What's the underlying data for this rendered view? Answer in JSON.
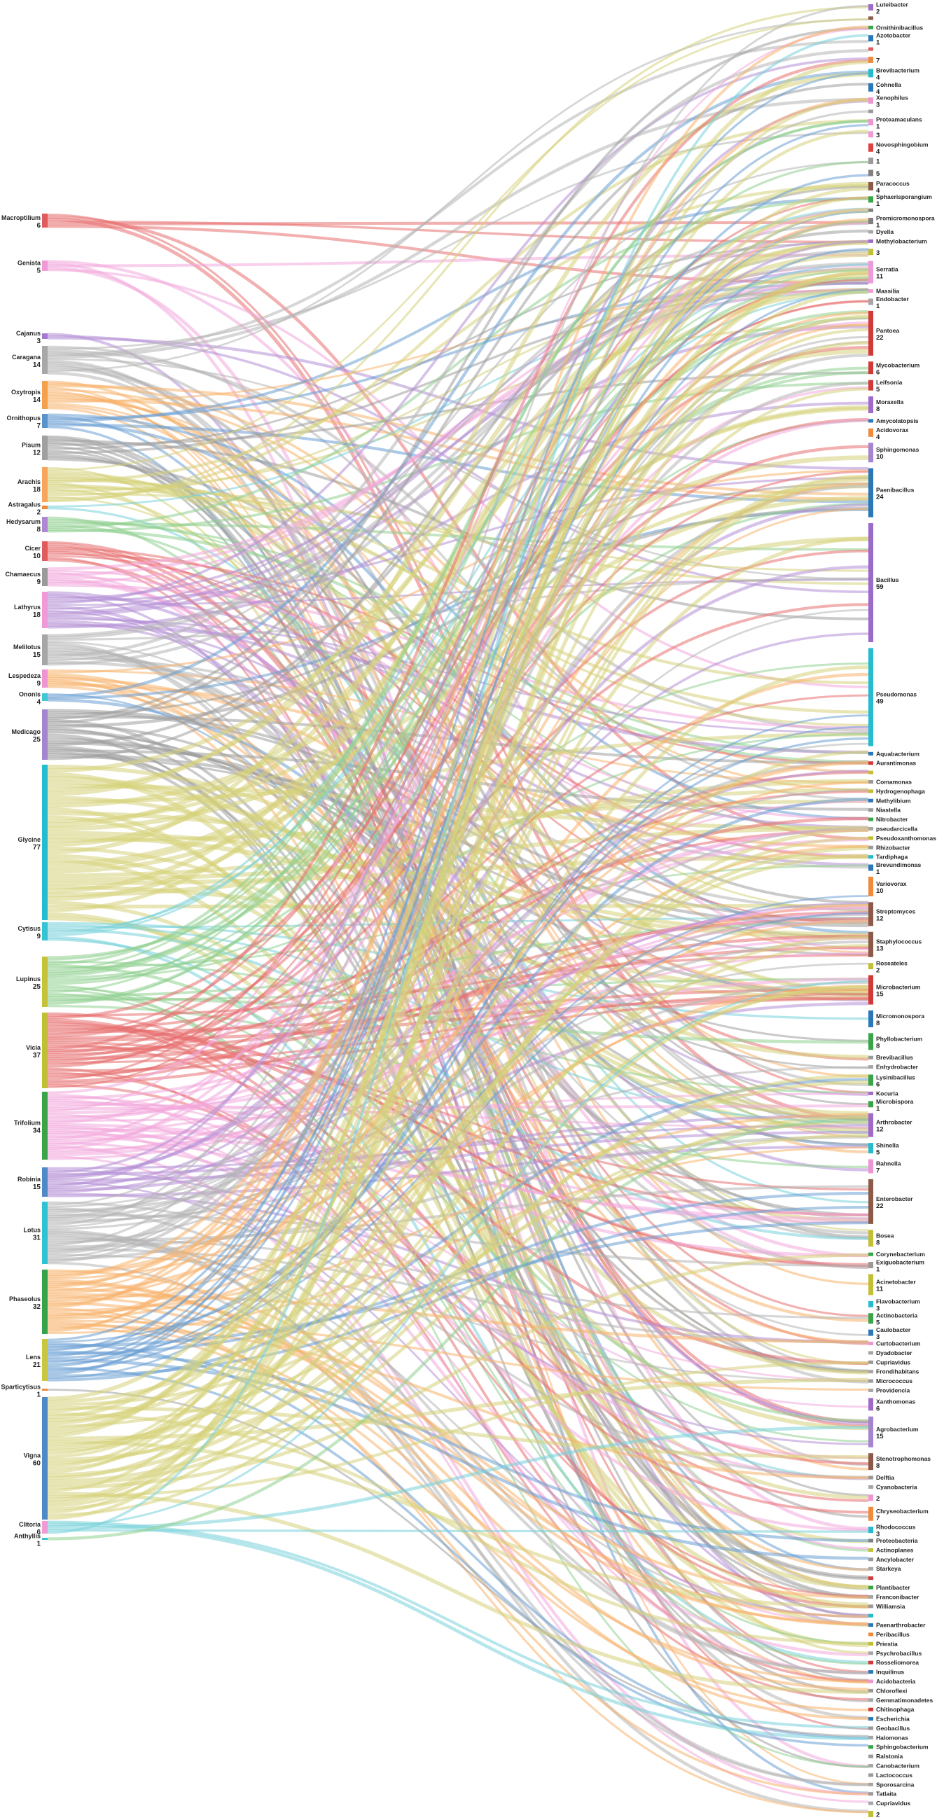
{
  "diagram": {
    "type": "sankey",
    "palette": [
      "#e76f6f",
      "#f3a7dc",
      "#b48fd6",
      "#b4b4b4",
      "#f7b26b",
      "#6a9fd4",
      "#9e9e9e",
      "#d6d27a",
      "#79d2db",
      "#8fcf8f"
    ],
    "left_nodes": [
      {
        "name": "Macroptilium",
        "value": "6",
        "color": "#e05b5b"
      },
      {
        "name": "Genista",
        "value": "5",
        "color": "#f09ad6"
      },
      {
        "name": "Cajanus",
        "value": "3",
        "color": "#a47acf"
      },
      {
        "name": "Caragana",
        "value": "14",
        "color": "#a8a8a8"
      },
      {
        "name": "Oxytropis",
        "value": "14",
        "color": "#f5a04a"
      },
      {
        "name": "Ornithopus",
        "value": "7",
        "color": "#5a92cc"
      },
      {
        "name": "Pisum",
        "value": "12",
        "color": "#a0a0a0"
      },
      {
        "name": "Arachis",
        "value": "18",
        "color": "#f7a65b"
      },
      {
        "name": "Astragalus",
        "value": "2",
        "color": "#f08a3c"
      },
      {
        "name": "Hedysarum",
        "value": "8",
        "color": "#b087d4"
      },
      {
        "name": "Cicer",
        "value": "10",
        "color": "#e05b5b"
      },
      {
        "name": "Chamaecus",
        "value": "9",
        "color": "#9a9a9a"
      },
      {
        "name": "Lathyrus",
        "value": "18",
        "color": "#ef9ad9"
      },
      {
        "name": "Melilotus",
        "value": "15",
        "color": "#a6a6a6"
      },
      {
        "name": "Lespedeza",
        "value": "9",
        "color": "#ee95d4"
      },
      {
        "name": "Ononis",
        "value": "4",
        "color": "#3fc7d6"
      },
      {
        "name": "Medicago",
        "value": "25",
        "color": "#a685d0"
      },
      {
        "name": "Glycine",
        "value": "77",
        "color": "#25bccf"
      },
      {
        "name": "Cytisus",
        "value": "9",
        "color": "#37c3d4"
      },
      {
        "name": "Lupinus",
        "value": "25",
        "color": "#c6c33a"
      },
      {
        "name": "Vicia",
        "value": "37",
        "color": "#c2bf35"
      },
      {
        "name": "Trifolium",
        "value": "34",
        "color": "#3aa548"
      },
      {
        "name": "Robinia",
        "value": "15",
        "color": "#4f8ac7"
      },
      {
        "name": "Lotus",
        "value": "31",
        "color": "#2fc2d3"
      },
      {
        "name": "Phaseolus",
        "value": "32",
        "color": "#36a34a"
      },
      {
        "name": "Lens",
        "value": "21",
        "color": "#c9c640"
      },
      {
        "name": "Sparticytisus",
        "value": "1",
        "color": "#f08a3c"
      },
      {
        "name": "Vigna",
        "value": "60",
        "color": "#4f8ac7"
      },
      {
        "name": "Clitoria",
        "value": "6",
        "color": "#f09ad6"
      },
      {
        "name": "Anthyllis",
        "value": "1",
        "color": "#37c3d4"
      }
    ],
    "right_nodes": [
      {
        "name": "Luteibacter",
        "value": "2",
        "color": "#a06bc8"
      },
      {
        "name": "",
        "value": "",
        "color": "#8c5a48"
      },
      {
        "name": "Ornithinibacillus",
        "value": "",
        "color": "#3aa548"
      },
      {
        "name": "Azotobacter",
        "value": "1",
        "color": "#2a78b8"
      },
      {
        "name": "",
        "value": "",
        "color": "#e05b5b"
      },
      {
        "name": "",
        "value": "7",
        "color": "#f08a3c"
      },
      {
        "name": "Brevibacterium",
        "value": "4",
        "color": "#25bccf"
      },
      {
        "name": "Cohnella",
        "value": "4",
        "color": "#2a78b8"
      },
      {
        "name": "Xenophilus",
        "value": "3",
        "color": "#ee95d4"
      },
      {
        "name": "",
        "value": "",
        "color": "#9a9a9a"
      },
      {
        "name": "Proteamaculans",
        "value": "1",
        "color": "#ee95d4"
      },
      {
        "name": "",
        "value": "3",
        "color": "#f09ad6"
      },
      {
        "name": "Novosphingobium",
        "value": "4",
        "color": "#e04040"
      },
      {
        "name": "",
        "value": "1",
        "color": "#9a9a9a"
      },
      {
        "name": "",
        "value": "5",
        "color": "#808080"
      },
      {
        "name": "Paracoccus",
        "value": "4",
        "color": "#8c5a48"
      },
      {
        "name": "Sphaerisporangium",
        "value": "1",
        "color": "#3aa548"
      },
      {
        "name": "",
        "value": "",
        "color": "#808080"
      },
      {
        "name": "Promicromonospora",
        "value": "1",
        "color": "#808080"
      },
      {
        "name": "Dyella",
        "value": "",
        "color": "#a6a6a6"
      },
      {
        "name": "Methylobacterium",
        "value": "",
        "color": "#a06bc8"
      },
      {
        "name": "",
        "value": "3",
        "color": "#c2bf35"
      },
      {
        "name": "Serratia",
        "value": "11",
        "color": "#ef9ad9"
      },
      {
        "name": "Massilia",
        "value": "",
        "color": "#f09ad6"
      },
      {
        "name": "Endobacter",
        "value": "1",
        "color": "#a6a6a6"
      },
      {
        "name": "Pantoea",
        "value": "22",
        "color": "#d23a3a"
      },
      {
        "name": "Mycobacterium",
        "value": "6",
        "color": "#d23a3a"
      },
      {
        "name": "Leifsonia",
        "value": "5",
        "color": "#d23a3a"
      },
      {
        "name": "Moraxella",
        "value": "8",
        "color": "#a06bc8"
      },
      {
        "name": "Amycolatopsis",
        "value": "",
        "color": "#2a78b8"
      },
      {
        "name": "Acidovorax",
        "value": "4",
        "color": "#f08a3c"
      },
      {
        "name": "Sphingomonas",
        "value": "10",
        "color": "#a685d0"
      },
      {
        "name": "Paenibacillus",
        "value": "24",
        "color": "#2a78b8"
      },
      {
        "name": "Bacillus",
        "value": "59",
        "color": "#9a6bc8"
      },
      {
        "name": "Pseudomonas",
        "value": "49",
        "color": "#25bccf"
      },
      {
        "name": "Aquabacterium",
        "value": "",
        "color": "#2a78b8"
      },
      {
        "name": "Aurantimonas",
        "value": "",
        "color": "#d23a3a"
      },
      {
        "name": "",
        "value": "",
        "color": "#c2bf35"
      },
      {
        "name": "Comamonas",
        "value": "",
        "color": "#9a9a9a"
      },
      {
        "name": "Hydrogenophaga",
        "value": "",
        "color": "#c2bf35"
      },
      {
        "name": "Methylibium",
        "value": "",
        "color": "#2a78b8"
      },
      {
        "name": "Niastella",
        "value": "",
        "color": "#9a9a9a"
      },
      {
        "name": "Nitrobacter",
        "value": "",
        "color": "#3aa548"
      },
      {
        "name": "pseudarcicella",
        "value": "",
        "color": "#a6a6a6"
      },
      {
        "name": "Pseudoxanthomonas",
        "value": "",
        "color": "#c2bf35"
      },
      {
        "name": "Rhizobacter",
        "value": "",
        "color": "#9a9a9a"
      },
      {
        "name": "Tardiphaga",
        "value": "",
        "color": "#25bccf"
      },
      {
        "name": "Brevundimonas",
        "value": "1",
        "color": "#2a78b8"
      },
      {
        "name": "Variovorax",
        "value": "10",
        "color": "#f08a3c"
      },
      {
        "name": "Streptomyces",
        "value": "12",
        "color": "#8c5a48"
      },
      {
        "name": "Staphylococcus",
        "value": "13",
        "color": "#8c5a48"
      },
      {
        "name": "Roseateles",
        "value": "2",
        "color": "#c2bf35"
      },
      {
        "name": "Microbacterium",
        "value": "15",
        "color": "#d23a3a"
      },
      {
        "name": "Micromonospora",
        "value": "8",
        "color": "#2a78b8"
      },
      {
        "name": "Phyllobacterium",
        "value": "8",
        "color": "#3aa548"
      },
      {
        "name": "Brevibacillus",
        "value": "",
        "color": "#9a9a9a"
      },
      {
        "name": "Enhydrobacter",
        "value": "",
        "color": "#a6a6a6"
      },
      {
        "name": "Lysinibacillus",
        "value": "6",
        "color": "#3aa548"
      },
      {
        "name": "Kocuria",
        "value": "",
        "color": "#a06bc8"
      },
      {
        "name": "Microbispora",
        "value": "1",
        "color": "#3aa548"
      },
      {
        "name": "Arthrobacter",
        "value": "12",
        "color": "#a06bc8"
      },
      {
        "name": "Shinella",
        "value": "5",
        "color": "#25bccf"
      },
      {
        "name": "Rahnella",
        "value": "7",
        "color": "#ee95d4"
      },
      {
        "name": "Enterobacter",
        "value": "22",
        "color": "#8c5a48"
      },
      {
        "name": "Bosea",
        "value": "8",
        "color": "#c2bf35"
      },
      {
        "name": "Corynebacterium",
        "value": "",
        "color": "#3aa548"
      },
      {
        "name": "Exiguobacterium",
        "value": "1",
        "color": "#9a9a9a"
      },
      {
        "name": "Acinetobacter",
        "value": "11",
        "color": "#c2bf35"
      },
      {
        "name": "Flavobacterium",
        "value": "3",
        "color": "#25bccf"
      },
      {
        "name": "Actinobacteria",
        "value": "5",
        "color": "#3aa548"
      },
      {
        "name": "Caulobacter",
        "value": "3",
        "color": "#2a78b8"
      },
      {
        "name": "Curtobacterium",
        "value": "",
        "color": "#ee95d4"
      },
      {
        "name": "Dyadobacter",
        "value": "",
        "color": "#a6a6a6"
      },
      {
        "name": "Cupriavidus",
        "value": "",
        "color": "#9a9a9a"
      },
      {
        "name": "Frondihabitans",
        "value": "",
        "color": "#a6a6a6"
      },
      {
        "name": "Micrococcus",
        "value": "",
        "color": "#9a9a9a"
      },
      {
        "name": "Providencia",
        "value": "",
        "color": "#a6a6a6"
      },
      {
        "name": "Xanthomonas",
        "value": "6",
        "color": "#a06bc8"
      },
      {
        "name": "Agrobacterium",
        "value": "15",
        "color": "#a685d0"
      },
      {
        "name": "Stenotrophomonas",
        "value": "8",
        "color": "#8c5a48"
      },
      {
        "name": "Delftia",
        "value": "",
        "color": "#9a9a9a"
      },
      {
        "name": "Cyanobacteria",
        "value": "",
        "color": "#a6a6a6"
      },
      {
        "name": "",
        "value": "2",
        "color": "#ee95d4"
      },
      {
        "name": "Chryseobacterium",
        "value": "7",
        "color": "#f08a3c"
      },
      {
        "name": "Rhodococcus",
        "value": "3",
        "color": "#25bccf"
      },
      {
        "name": "Proteobacteria",
        "value": "",
        "color": "#808080"
      },
      {
        "name": "Actinoplanes",
        "value": "",
        "color": "#c2bf35"
      },
      {
        "name": "Ancylobacter",
        "value": "",
        "color": "#9a9a9a"
      },
      {
        "name": "Starkeya",
        "value": "",
        "color": "#a6a6a6"
      },
      {
        "name": "",
        "value": "",
        "color": "#d23a3a"
      },
      {
        "name": "Plantibacter",
        "value": "",
        "color": "#3aa548"
      },
      {
        "name": "Franconibacter",
        "value": "",
        "color": "#a6a6a6"
      },
      {
        "name": "Williamsia",
        "value": "",
        "color": "#9a9a9a"
      },
      {
        "name": "",
        "value": "",
        "color": "#25bccf"
      },
      {
        "name": "Paenarthrobacter",
        "value": "",
        "color": "#2a78b8"
      },
      {
        "name": "Peribacillus",
        "value": "",
        "color": "#f08a3c"
      },
      {
        "name": "Priestia",
        "value": "",
        "color": "#c2bf35"
      },
      {
        "name": "Psychrobacillus",
        "value": "",
        "color": "#a6a6a6"
      },
      {
        "name": "Rosseliomorea",
        "value": "",
        "color": "#d23a3a"
      },
      {
        "name": "Inquilinus",
        "value": "",
        "color": "#2a78b8"
      },
      {
        "name": "Acidobacteria",
        "value": "",
        "color": "#ee95d4"
      },
      {
        "name": "Chloroflexi",
        "value": "",
        "color": "#9a9a9a"
      },
      {
        "name": "Gemmatimonadetes",
        "value": "",
        "color": "#a6a6a6"
      },
      {
        "name": "Chitinophaga",
        "value": "",
        "color": "#d23a3a"
      },
      {
        "name": "Escherichia",
        "value": "",
        "color": "#2a78b8"
      },
      {
        "name": "Geobacillus",
        "value": "",
        "color": "#9a9a9a"
      },
      {
        "name": "Halomonas",
        "value": "",
        "color": "#a6a6a6"
      },
      {
        "name": "Sphingobacterium",
        "value": "",
        "color": "#3aa548"
      },
      {
        "name": "Ralstonia",
        "value": "",
        "color": "#9a9a9a"
      },
      {
        "name": "Canobacterium",
        "value": "",
        "color": "#a6a6a6"
      },
      {
        "name": "Lactococcus",
        "value": "",
        "color": "#9a9a9a"
      },
      {
        "name": "Sporosarcina",
        "value": "",
        "color": "#a6a6a6"
      },
      {
        "name": "Tatlaita",
        "value": "",
        "color": "#9a9a9a"
      },
      {
        "name": "Cupriavidus",
        "value": "",
        "color": "#a6a6a6"
      },
      {
        "name": "",
        "value": "2",
        "color": "#c2bf35"
      }
    ]
  }
}
